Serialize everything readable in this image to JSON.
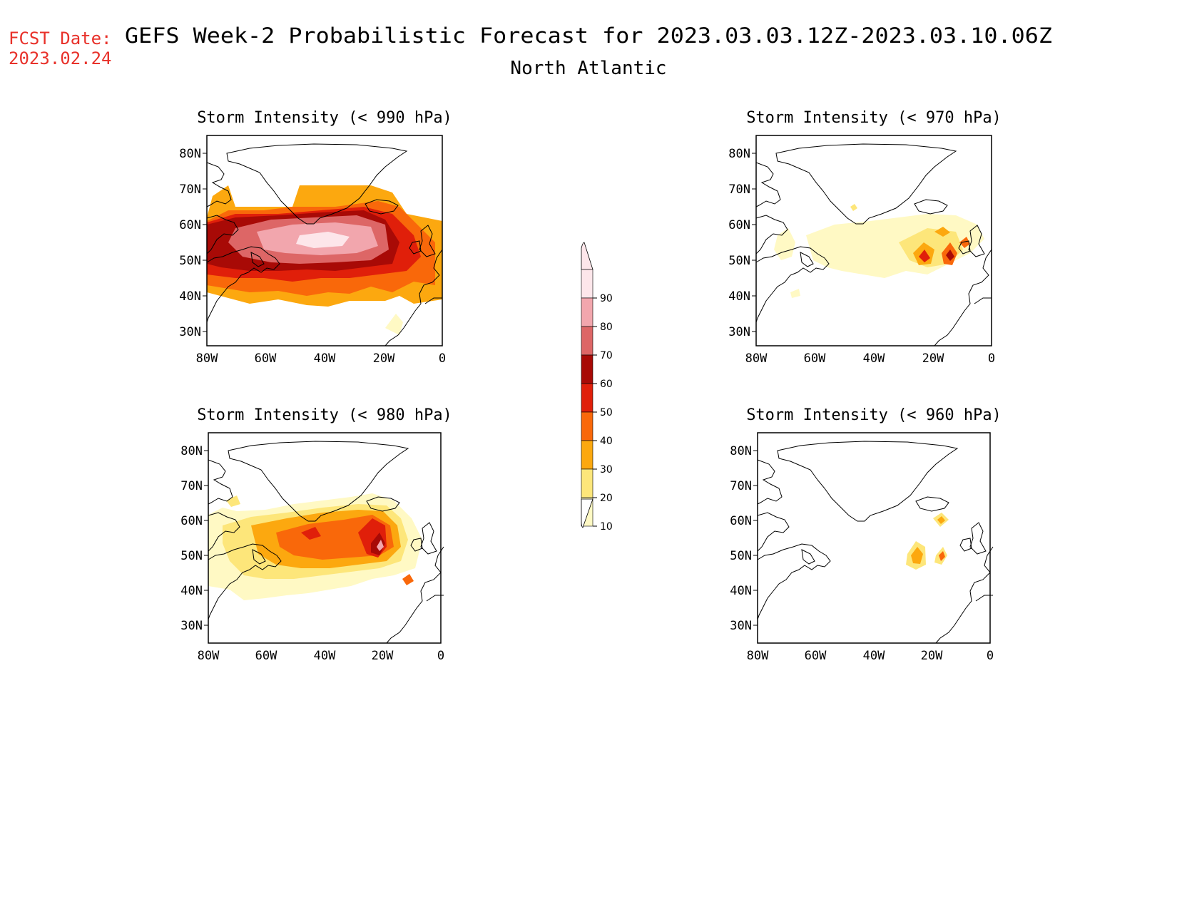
{
  "header": {
    "fcst_label": "FCST Date:",
    "fcst_date": "2023.02.24",
    "title": "GEFS Week-2 Probabilistic Forecast for 2023.03.03.12Z-2023.03.10.06Z",
    "subtitle": "North Atlantic"
  },
  "colors": {
    "fcst": "#e8312a",
    "text": "#000000",
    "levels": [
      "#fff9c4",
      "#fde67a",
      "#fca80f",
      "#f9680a",
      "#e01f0a",
      "#a80a06",
      "#dd6666",
      "#f2a6ad",
      "#fde6ea"
    ]
  },
  "axes": {
    "lon_labels": [
      "80W",
      "60W",
      "40W",
      "20W",
      "0"
    ],
    "lat_labels": [
      "80N",
      "70N",
      "60N",
      "50N",
      "40N",
      "30N"
    ]
  },
  "legend": {
    "labels": [
      "10",
      "20",
      "30",
      "40",
      "50",
      "60",
      "70",
      "80",
      "90"
    ]
  },
  "panels": [
    {
      "id": "p990",
      "title": "Storm Intensity (< 990 hPa)"
    },
    {
      "id": "p970",
      "title": "Storm Intensity (< 970 hPa)"
    },
    {
      "id": "p980",
      "title": "Storm Intensity (< 980 hPa)"
    },
    {
      "id": "p960",
      "title": "Storm Intensity (< 960 hPa)"
    }
  ]
}
